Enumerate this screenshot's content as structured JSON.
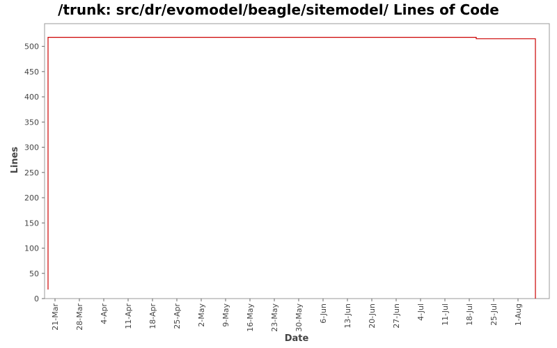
{
  "chart_data": {
    "type": "line",
    "title": "/trunk: src/dr/evomodel/beagle/sitemodel/ Lines of Code",
    "xlabel": "Date",
    "ylabel": "Lines",
    "ylim": [
      0,
      545
    ],
    "yticks": [
      0,
      50,
      100,
      150,
      200,
      250,
      300,
      350,
      400,
      450,
      500
    ],
    "xticks": [
      "21-Mar",
      "28-Mar",
      "4-Apr",
      "11-Apr",
      "18-Apr",
      "25-Apr",
      "2-May",
      "9-May",
      "16-May",
      "23-May",
      "30-May",
      "6-Jun",
      "13-Jun",
      "20-Jun",
      "27-Jun",
      "4-Jul",
      "11-Jul",
      "18-Jul",
      "25-Jul",
      "1-Aug"
    ],
    "xrange": [
      "2009-03-18",
      "2009-08-10"
    ],
    "grid": false,
    "legend": "none",
    "series": [
      {
        "color": "#cc0000",
        "points": [
          [
            "2009-03-19",
            18
          ],
          [
            "2009-03-19",
            478
          ],
          [
            "2009-03-19",
            478
          ],
          [
            "2009-03-19",
            518
          ],
          [
            "2009-07-20",
            518
          ],
          [
            "2009-07-20",
            515
          ],
          [
            "2009-08-06",
            515
          ],
          [
            "2009-08-06",
            0
          ]
        ]
      }
    ]
  }
}
